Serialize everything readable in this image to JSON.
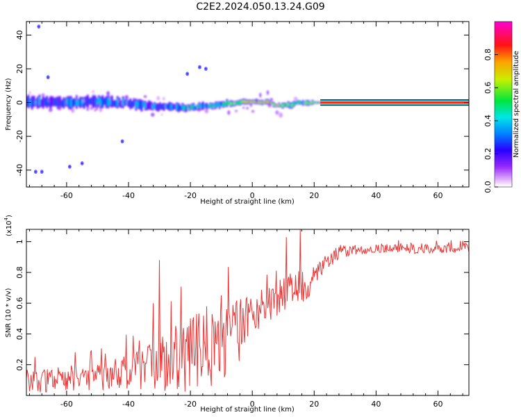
{
  "title": "C2E2.2024.050.13.24.G09",
  "colors": {
    "snr_line": "#ee3333",
    "colormap": "rainbow (violet-blue-cyan-green-yellow-red-magenta)"
  },
  "chart_data": [
    {
      "type": "heatmap",
      "title": "",
      "xlabel": "Height of straight line (km)",
      "ylabel": "Frequency (Hz)",
      "xlim": [
        -73,
        70
      ],
      "ylim": [
        -50,
        48
      ],
      "xticks": [
        -60,
        -40,
        -20,
        0,
        20,
        40,
        60
      ],
      "yticks": [
        -40,
        -20,
        0,
        20,
        40
      ],
      "grid": false,
      "colorbar": {
        "label": "Normalized spectral amplitude",
        "range": [
          0,
          1
        ],
        "ticks": [
          0.0,
          0.2,
          0.4,
          0.6,
          0.8
        ]
      },
      "ridge": {
        "x": [
          -73,
          -60,
          -50,
          -40,
          -30,
          -25,
          -20,
          -15,
          -10,
          -5,
          0,
          5,
          8,
          12,
          15,
          20,
          25,
          40,
          60,
          70
        ],
        "freq": [
          0.5,
          0,
          0.5,
          -0.5,
          -2.5,
          -3,
          -3,
          -2,
          -1,
          0,
          0.5,
          0,
          -1.5,
          -1.5,
          0,
          0,
          0,
          0,
          0,
          0
        ],
        "amplitude": [
          0.3,
          0.35,
          0.35,
          0.35,
          0.35,
          0.4,
          0.45,
          0.45,
          0.5,
          0.6,
          0.9,
          0.85,
          0.8,
          0.55,
          0.55,
          0.7,
          0.95,
          0.95,
          0.95,
          0.95
        ],
        "spread": [
          3,
          3,
          3,
          2.5,
          2.5,
          2,
          2,
          1.8,
          1.8,
          1.5,
          1.2,
          1.2,
          1.3,
          1.5,
          1.5,
          1.2,
          1,
          1,
          1,
          1
        ]
      },
      "outliers": [
        {
          "x": -70,
          "freq": -41
        },
        {
          "x": -68,
          "freq": -41
        },
        {
          "x": -55,
          "freq": -36
        },
        {
          "x": -59,
          "freq": -38
        },
        {
          "x": -69,
          "freq": 45
        },
        {
          "x": -17,
          "freq": 21
        },
        {
          "x": -15,
          "freq": 20
        },
        {
          "x": -21,
          "freq": 17
        },
        {
          "x": -42,
          "freq": -23
        },
        {
          "x": -66,
          "freq": 15
        }
      ]
    },
    {
      "type": "line",
      "title": "",
      "xlabel": "Height of straight line (km)",
      "ylabel": "SNR (10 * v/v)",
      "y_multiplier": "(x10^4)",
      "y_multiplier_text": {
        "base": "(x10",
        "exp": "4",
        "close": ")"
      },
      "xlim": [
        -73,
        70
      ],
      "ylim": [
        0,
        1.08
      ],
      "xticks": [
        -60,
        -40,
        -20,
        0,
        20,
        40,
        60
      ],
      "yticks": [
        0.2,
        0.4,
        0.6,
        0.8,
        1.0
      ],
      "grid": false,
      "series": [
        {
          "name": "",
          "x_start": -73,
          "x_step": 0.25,
          "envelope_x": [
            -73,
            -60,
            -45,
            -35,
            -25,
            -20,
            -10,
            -5,
            0,
            5,
            12,
            17,
            22,
            28,
            35,
            45,
            55,
            70
          ],
          "envelope_mean": [
            0.1,
            0.1,
            0.13,
            0.17,
            0.24,
            0.27,
            0.33,
            0.4,
            0.55,
            0.6,
            0.66,
            0.72,
            0.83,
            0.93,
            0.95,
            0.96,
            0.95,
            0.96
          ],
          "envelope_jitter": [
            0.08,
            0.08,
            0.1,
            0.14,
            0.22,
            0.25,
            0.25,
            0.22,
            0.15,
            0.12,
            0.12,
            0.12,
            0.06,
            0.04,
            0.03,
            0.03,
            0.03,
            0.03
          ]
        }
      ],
      "peaks": [
        {
          "x": -30,
          "y": 0.88
        },
        {
          "x": 15.5,
          "y": 1.08
        },
        {
          "x": 11,
          "y": 1.03
        },
        {
          "x": -32,
          "y": 0.6
        }
      ]
    }
  ],
  "axis_labels": {
    "top_x": "Height of straight line (km)",
    "top_y": "Frequency (Hz)",
    "colorbar": "Normalized spectral amplitude",
    "bot_x": "Height of straight line (km)",
    "bot_y": "SNR (10 * v/v)"
  }
}
